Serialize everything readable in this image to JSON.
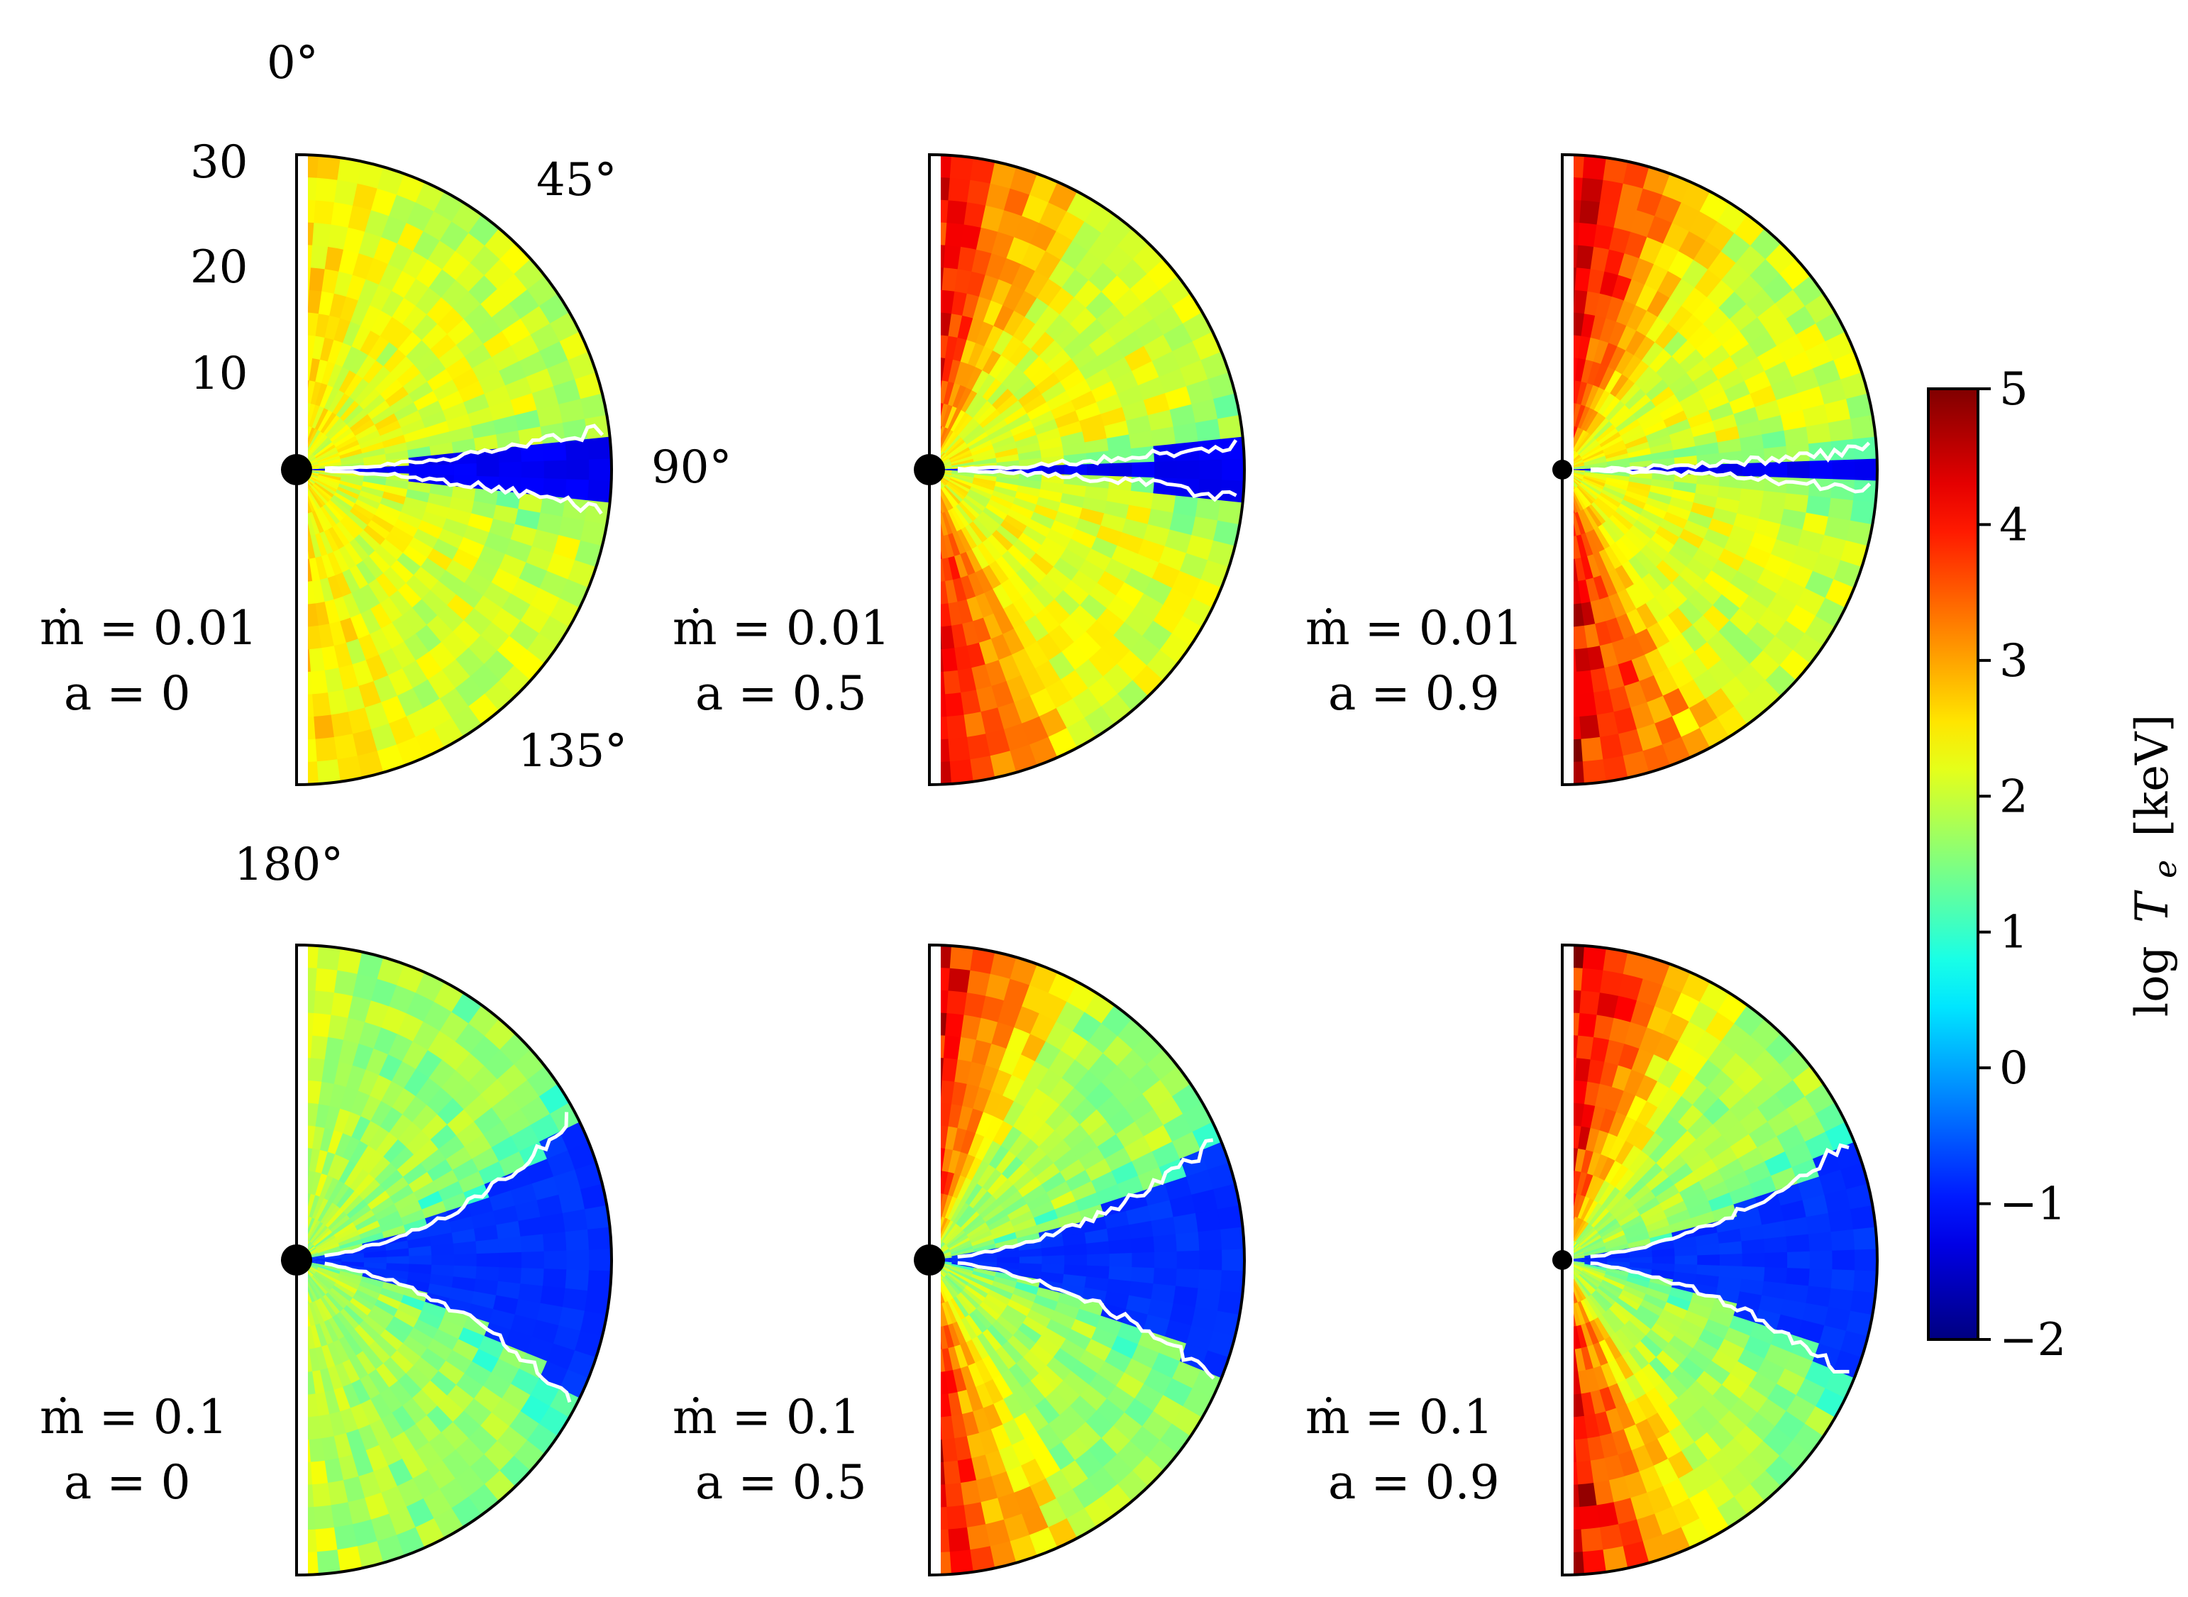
{
  "chart_data": {
    "type": "heatmap",
    "description_units": "polar maps of log T_e; radius in gravitational radii, polar angle in degrees",
    "radial_ticks": [
      "10",
      "20",
      "30"
    ],
    "angle_ticks": [
      "0°",
      "45°",
      "90°",
      "135°",
      "180°"
    ],
    "radial_range": [
      0,
      30
    ],
    "angle_range": [
      0,
      180
    ],
    "colorbar": {
      "label": "log T_e [keV]",
      "label_parts": {
        "log": "log",
        "T": "T",
        "sub": "e",
        "unit": "[keV]"
      },
      "range": [
        -2,
        5
      ],
      "ticks": [
        5,
        4,
        3,
        2,
        1,
        0,
        -1,
        -2
      ],
      "tick_labels": [
        "5",
        "4",
        "3",
        "2",
        "1",
        "0",
        "−1",
        "−2"
      ],
      "colormap": "jet"
    },
    "panels": [
      {
        "mdot_label": "ṁ = 0.01",
        "a_label": "a = 0",
        "mdot": 0.01,
        "a": 0,
        "disk_half_angle_deg": 6,
        "hot_level": 2.4,
        "jet_level": 2.7,
        "background_level": 2.0,
        "disk_level": -1.3,
        "jet_width_deg": 30
      },
      {
        "mdot_label": "ṁ = 0.01",
        "a_label": "a = 0.5",
        "mdot": 0.01,
        "a": 0.5,
        "disk_half_angle_deg": 4,
        "hot_level": 2.4,
        "jet_level": 4.8,
        "background_level": 2.1,
        "disk_level": -1.3,
        "jet_width_deg": 35
      },
      {
        "mdot_label": "ṁ = 0.01",
        "a_label": "a = 0.9",
        "mdot": 0.01,
        "a": 0.9,
        "disk_half_angle_deg": 3,
        "hot_level": 2.4,
        "jet_level": 5.0,
        "background_level": 2.0,
        "disk_level": -1.3,
        "jet_width_deg": 40
      },
      {
        "mdot_label": "ṁ = 0.1",
        "a_label": "a = 0",
        "mdot": 0.1,
        "a": 0,
        "disk_half_angle_deg": 22,
        "hot_level": 1.9,
        "jet_level": 2.1,
        "background_level": 1.6,
        "disk_level": -0.9,
        "jet_width_deg": 30
      },
      {
        "mdot_label": "ṁ = 0.1",
        "a_label": "a = 0.5",
        "mdot": 0.1,
        "a": 0.5,
        "disk_half_angle_deg": 18,
        "hot_level": 1.9,
        "jet_level": 4.8,
        "background_level": 1.7,
        "disk_level": -0.9,
        "jet_width_deg": 35
      },
      {
        "mdot_label": "ṁ = 0.1",
        "a_label": "a = 0.9",
        "mdot": 0.1,
        "a": 0.9,
        "disk_half_angle_deg": 18,
        "hot_level": 1.9,
        "jet_level": 5.0,
        "background_level": 1.7,
        "disk_level": -0.9,
        "jet_width_deg": 40
      }
    ]
  }
}
